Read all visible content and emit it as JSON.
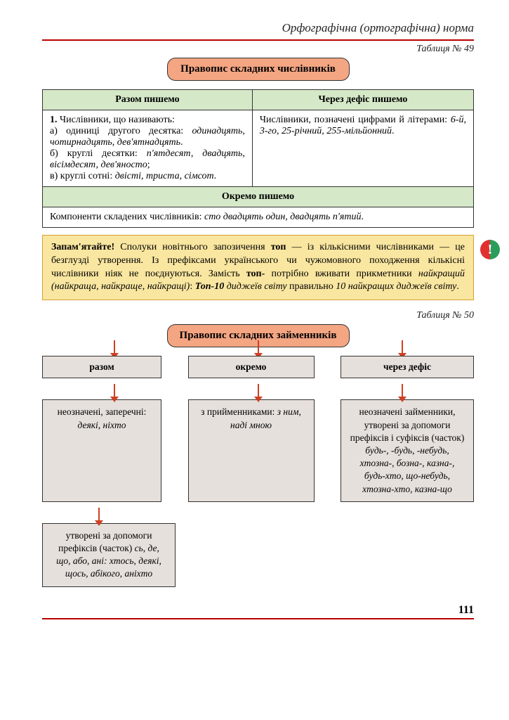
{
  "header": "Орфографічна (ортографічна) норма",
  "table49": {
    "num": "Таблиця № 49",
    "title": "Правопис складних числівників",
    "col1": "Разом пишемо",
    "col2": "Через дефіс пишемо",
    "left_html": "<b>1.</b> Числівники, що називають:<br>а) одиниці другого десятка: <i>одинадцять, чотирнадцять, дев'ятнадцять</i>.<br>б) круглі десятки: <i>п'ятдесят, двадцять, вісімдесят, дев'яносто</i>;<br>в) круглі сотні: <i>двісті, триста, сімсот</i>.",
    "right_html": "Числівники, позначені цифрами й літерами: <i>6-й, 3-го, 25-річний, 255-мільйонний</i>.",
    "mid": "Окремо пишемо",
    "bottom_html": "Компоненти складених числівників: <i>сто двадцять один, двадцять п'ятий</i>."
  },
  "note_html": "<b>Запам'ятайте!</b> Сполуки новітнього запозичення <b>топ</b> — із кількісними числівниками — це безглузді утворення. Із префіксами українського чи чужомовного походження кількісні числівники ніяк не поєднуються. Замість <b>топ-</b> потрібно вживати прикметники <i>найкращий (найкраща, найкраще, найкращі)</i>: <b><i>Топ-10</i></b> <i>диджеїв світу</i> правильно <i>10 найкращих диджеїв світу</i>.",
  "table50": {
    "num": "Таблиця № 50",
    "title": "Правопис складних займенників",
    "heads": [
      "разом",
      "окремо",
      "через дефіс"
    ],
    "row1": [
      "неозначені, заперечні: <i>деякі, ніхто</i>",
      "з прийменниками: <i>з ним, наді мною</i>",
      "неозначені займенники, утворені за допомоги префіксів і суфіксів (часток) <i>будь-, -будь, -небудь, хтозна-, бозна-, казна-, будь-хто, що-небудь, хтозна-хто, казна-що</i>"
    ],
    "row2_left": "утворені за допомоги префіксів (часток) <i>сь, де, що, або, ані: хтось, деякі, щось, абікого, аніхто</i>"
  },
  "pagenum": "111",
  "excl": "!"
}
